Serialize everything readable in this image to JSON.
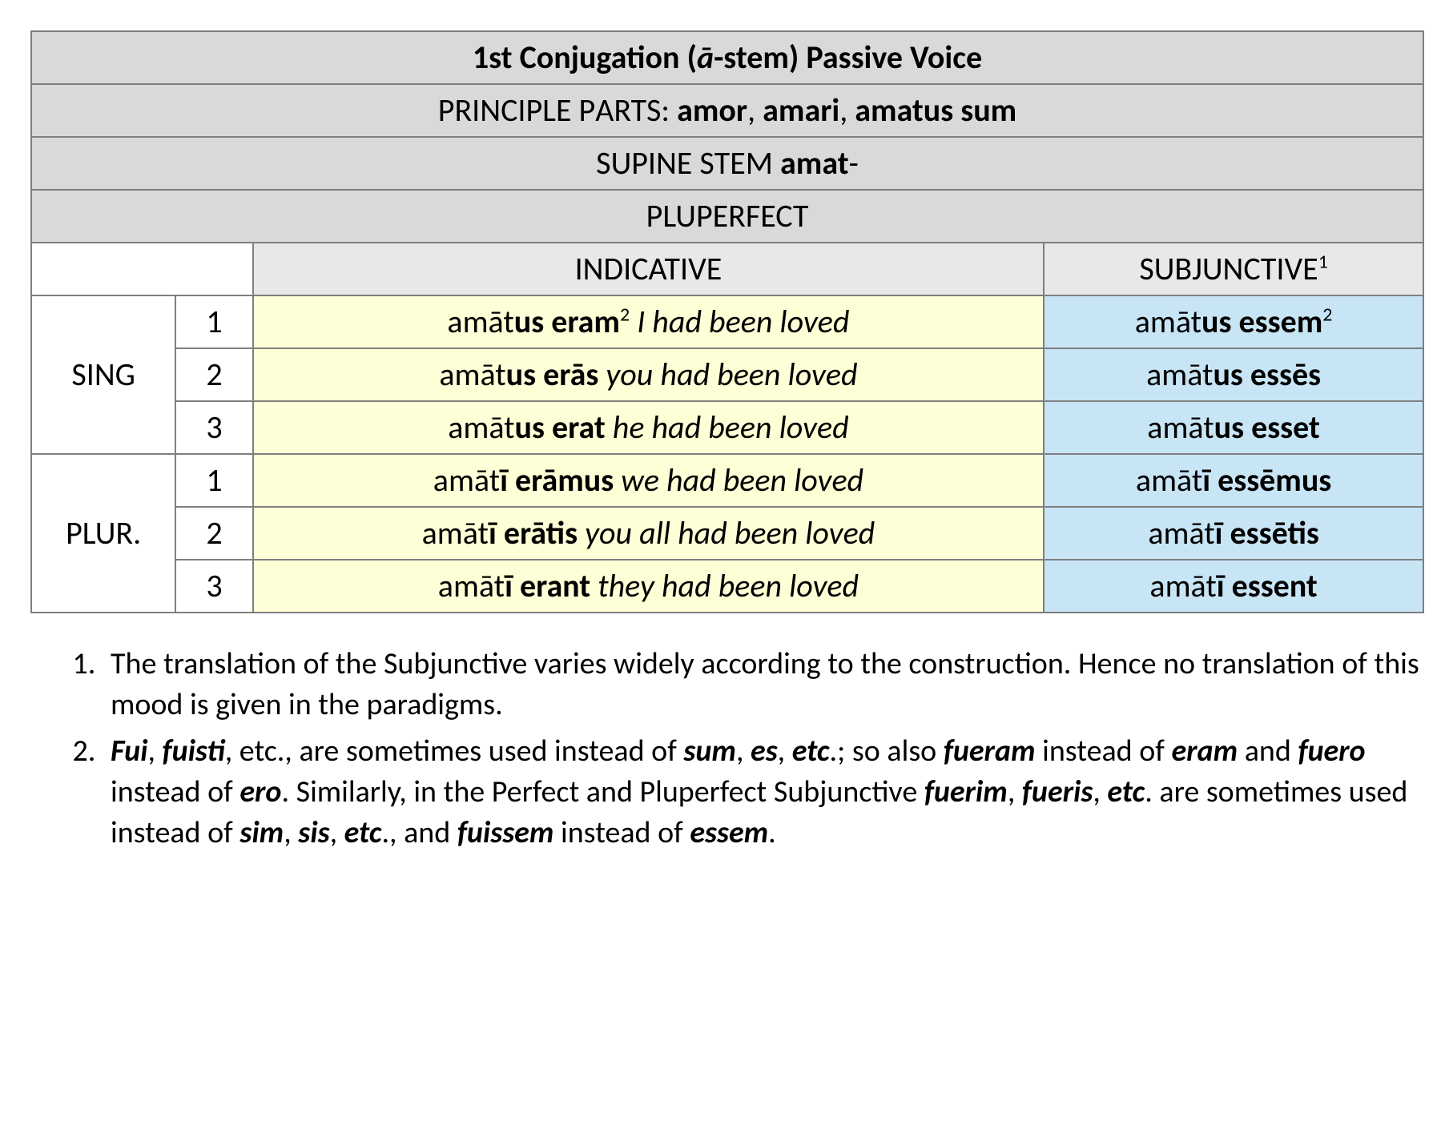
{
  "title_pre": "1st Conjugation (",
  "title_stem": "ā",
  "title_post": "-stem) Passive Voice",
  "pp_label_1": "P",
  "pp_label_2": "RINCIPLE ",
  "pp_label_3": "P",
  "pp_label_4": "ARTS",
  "pp_colon": ": ",
  "pp_1": "amor",
  "pp_sep1": ", ",
  "pp_2": "amari",
  "pp_sep2": ", ",
  "pp_3": "amatus sum",
  "stem_label_1": "S",
  "stem_label_2": "UPINE ",
  "stem_label_3": "S",
  "stem_label_4": "TEM ",
  "stem_value": "amat",
  "stem_dash": "-",
  "tense_1": "P",
  "tense_2": "LUPERFECT",
  "mood_ind_1": "I",
  "mood_ind_2": "NDICATIVE",
  "mood_sub_1": "S",
  "mood_sub_2": "UBJUNCTIVE",
  "mood_sub_sup": "1",
  "sing_1": "S",
  "sing_2": "ING",
  "plur_1": "P",
  "plur_2": "LUR",
  "plur_dot": ".",
  "n1": "1",
  "n2": "2",
  "n3": "3",
  "rows": {
    "s1": {
      "i_a": "amāt",
      "i_b": "us eram",
      "i_sup": "2",
      "i_sp": " ",
      "i_tr": "I had been loved",
      "s_a": "amāt",
      "s_b": "us essem",
      "s_sup": "2"
    },
    "s2": {
      "i_a": "amāt",
      "i_b": "us erās",
      "i_sp": "  ",
      "i_tr": "you had been loved",
      "s_a": "amāt",
      "s_b": "us essēs"
    },
    "s3": {
      "i_a": "amāt",
      "i_b": "us erat",
      "i_sp": "  ",
      "i_tr": "he had been loved",
      "s_a": "amāt",
      "s_b": "us esset"
    },
    "p1": {
      "i_a": "amāt",
      "i_b": "ī erāmus",
      "i_sp": "  ",
      "i_tr": "we had been loved",
      "s_a": "amāt",
      "s_b": "ī essēmus"
    },
    "p2": {
      "i_a": "amāt",
      "i_b": "ī erātis",
      "i_sp": "  ",
      "i_tr": "you all had been loved",
      "s_a": "amāt",
      "s_b": "ī essētis"
    },
    "p3": {
      "i_a": "amāt",
      "i_b": "ī erant",
      "i_sp": "  ",
      "i_tr": "they had been loved",
      "s_a": "amāt",
      "s_b": "ī essent"
    }
  },
  "fn1": "The translation of the Subjunctive varies widely according to the construction. Hence no translation of this mood is given in the paradigms.",
  "fn2": {
    "t1": "Fui",
    "s1": ", ",
    "t2": "fuisti",
    "s2": ", etc., are sometimes used instead of ",
    "t3": "sum",
    "s3": ", ",
    "t4": "es",
    "s4": ", ",
    "t5": "etc",
    "s5": ".; so also ",
    "t6": "fueram",
    "s6": " instead of ",
    "t7": "eram",
    "s7": " and ",
    "t8": "fuero",
    "s8": " instead of ",
    "t9": "ero",
    "s9": ". Similarly, in the Perfect and Pluperfect Subjunctive ",
    "t10": "fuerim",
    "s10": ", ",
    "t11": "fueris",
    "s11": ", ",
    "t12": "etc",
    "s12": ". are sometimes used instead of ",
    "t13": "sim",
    "s13": ", ",
    "t14": "sis",
    "s14": ", ",
    "t15": "etc",
    "s15": "., and ",
    "t16": "fuissem",
    "s16": " instead of ",
    "t17": "essem",
    "s17": "."
  }
}
